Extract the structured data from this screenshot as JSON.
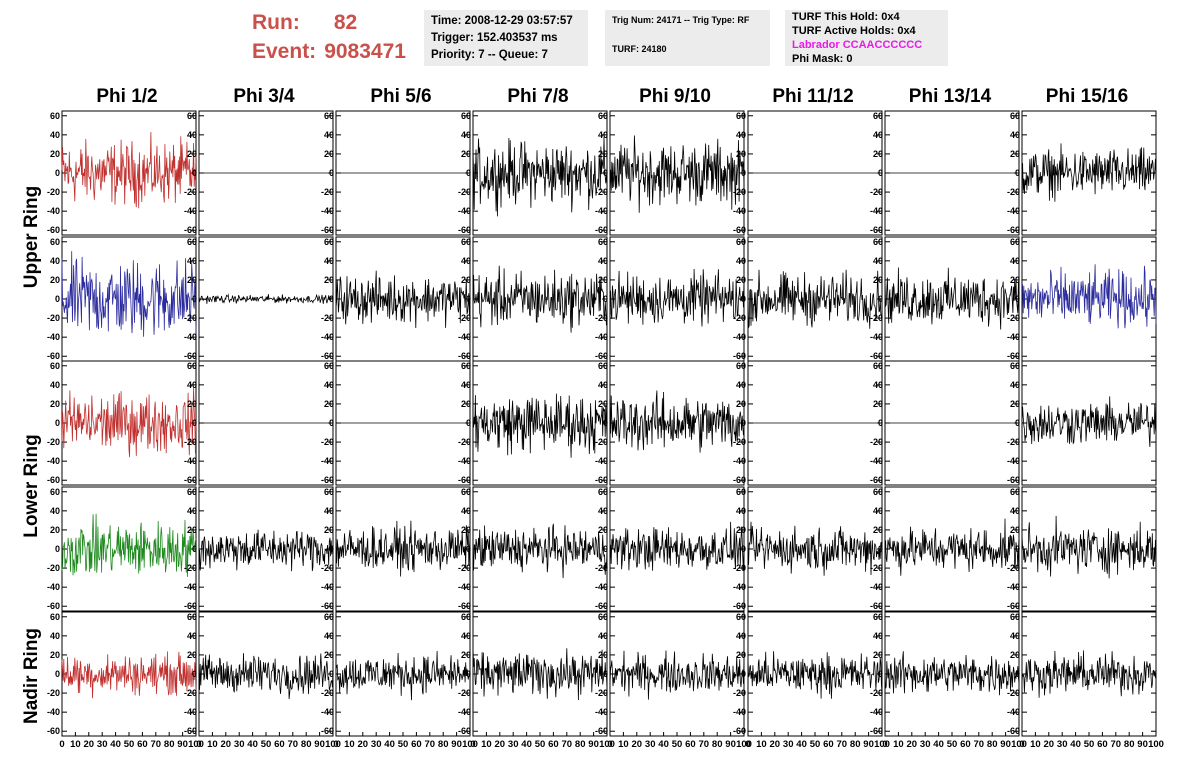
{
  "run": {
    "label": "Run:",
    "value": "82"
  },
  "event": {
    "label": "Event:",
    "value": "9083471"
  },
  "time_panel": {
    "time": "Time: 2008-12-29 03:57:57",
    "trigger": "Trigger: 152.403537 ms",
    "priority": "Priority: 7 -- Queue: 7"
  },
  "trig_panel": {
    "trig": "Trig Num: 24171 -- Trig Type: RF",
    "turf": "TURF: 24180"
  },
  "turf_panel": {
    "this_hold": "TURF This Hold: 0x4",
    "active_holds": "TURF Active Holds: 0x4",
    "labrador": "Labrador CCAACCCCCC",
    "phi_mask": "Phi Mask: 0"
  },
  "columns": [
    "Phi 1/2",
    "Phi 3/4",
    "Phi 5/6",
    "Phi 7/8",
    "Phi 9/10",
    "Phi 11/12",
    "Phi 13/14",
    "Phi 15/16"
  ],
  "rows": [
    "Upper Ring",
    "Lower Ring",
    "Nadir Ring"
  ],
  "colors": {
    "red": "#c0302e",
    "blue": "#2b2b9e",
    "green": "#1e8a1e",
    "black": "#000000",
    "title": "#c9504b",
    "magenta": "#e81ae6"
  },
  "chart_data": {
    "type": "line",
    "x_ticks": [
      0,
      10,
      20,
      30,
      40,
      50,
      60,
      70,
      80,
      90,
      100
    ],
    "xlim": [
      0,
      100
    ],
    "ylim": [
      -65,
      65
    ],
    "y_ticks": [
      -60,
      -40,
      -20,
      0,
      20,
      40,
      60
    ],
    "panel_rows": 5,
    "panel_cols": 8,
    "traces": [
      [
        "red",
        "flat",
        "flat",
        "black",
        "black",
        "flat",
        "flat",
        "black"
      ],
      [
        "blue",
        "black",
        "black",
        "black",
        "black",
        "black",
        "black",
        "blue"
      ],
      [
        "red",
        "flat",
        "flat",
        "black",
        "black",
        "flat",
        "flat",
        "black"
      ],
      [
        "green",
        "black",
        "black",
        "black",
        "black",
        "black",
        "black",
        "black"
      ],
      [
        "red",
        "black",
        "black",
        "black",
        "black",
        "black",
        "black",
        "black"
      ]
    ],
    "amplitude": [
      [
        16,
        0,
        0,
        16,
        16,
        0,
        0,
        12
      ],
      [
        20,
        2,
        12,
        14,
        13,
        13,
        13,
        14
      ],
      [
        15,
        0,
        0,
        15,
        14,
        0,
        0,
        11
      ],
      [
        14,
        10,
        11,
        11,
        11,
        11,
        11,
        12
      ],
      [
        10,
        10,
        10,
        11,
        10,
        10,
        10,
        10
      ]
    ]
  }
}
